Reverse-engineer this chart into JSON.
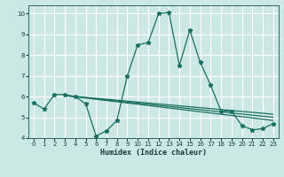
{
  "xlabel": "Humidex (Indice chaleur)",
  "bg_color": "#cce8e6",
  "grid_color": "#ffffff",
  "line_color": "#1a7060",
  "xlim": [
    -0.5,
    23.5
  ],
  "ylim": [
    4,
    10.4
  ],
  "xticks": [
    0,
    1,
    2,
    3,
    4,
    5,
    6,
    7,
    8,
    9,
    10,
    11,
    12,
    13,
    14,
    15,
    16,
    17,
    18,
    19,
    20,
    21,
    22,
    23
  ],
  "yticks": [
    4,
    5,
    6,
    7,
    8,
    9,
    10
  ],
  "series": [
    {
      "x": [
        0,
        1,
        2,
        3,
        4,
        5,
        6,
        7,
        8,
        9,
        10,
        11,
        12,
        13,
        14,
        15,
        16,
        17,
        18,
        19,
        20,
        21,
        22,
        23
      ],
      "y": [
        5.7,
        5.4,
        6.1,
        6.1,
        6.0,
        5.65,
        4.1,
        4.35,
        4.85,
        7.0,
        8.5,
        8.6,
        10.0,
        10.05,
        7.5,
        9.2,
        7.65,
        6.55,
        5.3,
        5.3,
        4.6,
        4.4,
        4.45,
        4.7
      ]
    },
    {
      "x": [
        3,
        23
      ],
      "y": [
        6.05,
        4.85
      ]
    },
    {
      "x": [
        3,
        23
      ],
      "y": [
        6.05,
        5.0
      ]
    },
    {
      "x": [
        3,
        23
      ],
      "y": [
        6.05,
        5.15
      ]
    }
  ],
  "marker": "*",
  "markersize": 3.5,
  "linewidth": 0.9,
  "xlabel_fontsize": 6.0,
  "tick_fontsize": 5.0
}
